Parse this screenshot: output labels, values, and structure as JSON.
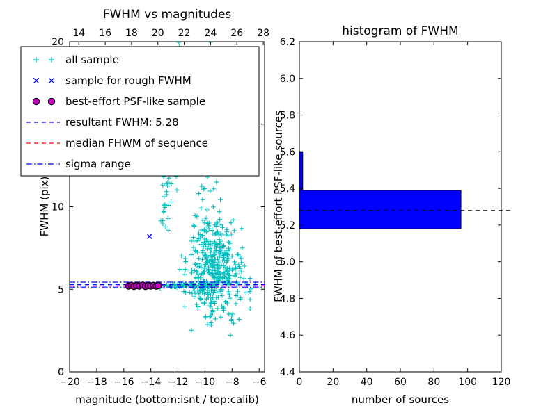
{
  "figure": {
    "background": "#ffffff"
  },
  "colors": {
    "all_sample": "#00bfbf",
    "rough_fwhm": "#0000ff",
    "psf_sample_fill": "#bf00bf",
    "psf_sample_edge": "#000000",
    "resultant_line": "#0000ff",
    "median_line": "#ff0000",
    "sigma_line": "#0000ff",
    "bar_fill": "#0000ff",
    "bar_edge": "#000000",
    "reference_dash": "#000000",
    "axes": "#000000"
  },
  "chart_data": [
    {
      "type": "scatter",
      "title": "FWHM vs magnitudes",
      "xlabel": "magnitude (bottom:isnt / top:calib)",
      "ylabel": "FWHM (pix)",
      "xlim": [
        -20,
        -5.6
      ],
      "ylim": [
        0,
        20
      ],
      "top_xlim": [
        13.3,
        28.1
      ],
      "x_ticks_bottom": [
        -20,
        -18,
        -16,
        -14,
        -12,
        -10,
        -8,
        -6
      ],
      "x_ticks_top": [
        14,
        16,
        18,
        20,
        22,
        24,
        26,
        28
      ],
      "y_ticks": [
        0,
        5,
        10,
        15,
        20
      ],
      "grid": false,
      "legend_position": "upper left",
      "series": [
        {
          "name": "all sample",
          "marker": "plus",
          "color": "#00bfbf",
          "seed": 42,
          "clusters": [
            {
              "n": 400,
              "x_mean": -9.3,
              "x_sd": 1.0,
              "x_min": -11.9,
              "x_max": -6.5,
              "y_mean": 6.3,
              "y_sd": 1.3,
              "y_min": 3.8,
              "y_max": 10.2
            },
            {
              "n": 70,
              "x_mean": -9.7,
              "x_sd": 0.6,
              "x_min": -11.2,
              "x_max": -8.2,
              "y_mean": 14.0,
              "y_sd": 3.5,
              "y_min": 8.0,
              "y_max": 20.0
            },
            {
              "n": 40,
              "x_mean": -11.9,
              "x_sd": 0.15,
              "x_min": -12.3,
              "x_max": -11.5,
              "y_mean": 15.0,
              "y_sd": 3.0,
              "y_min": 9.5,
              "y_max": 20.0
            },
            {
              "n": 35,
              "x_mean": -9.0,
              "x_sd": 1.3,
              "x_min": -11.5,
              "x_max": -6.5,
              "y_mean": 3.6,
              "y_sd": 0.6,
              "y_min": 2.2,
              "y_max": 4.6
            },
            {
              "n": 80,
              "x_mean": -11.6,
              "x_sd": 1.3,
              "x_min": -13.9,
              "x_max": -9.3,
              "y_mean": 5.22,
              "y_sd": 0.07,
              "y_min": 5.0,
              "y_max": 5.45
            },
            {
              "n": 25,
              "x_mean": -12.9,
              "x_sd": 0.25,
              "x_min": -13.5,
              "x_max": -12.3,
              "y_mean": 10.3,
              "y_sd": 1.4,
              "y_min": 7.8,
              "y_max": 13.0
            },
            {
              "n": 8,
              "x_mean": -9.8,
              "x_sd": 0.8,
              "x_min": -11.5,
              "x_max": -8.5,
              "y_mean": 18.5,
              "y_sd": 1.2,
              "y_min": 16.0,
              "y_max": 20.0
            },
            {
              "n": 6,
              "x_mean": -6.6,
              "x_sd": 0.3,
              "x_min": -7.2,
              "x_max": -6.1,
              "y_mean": 5.0,
              "y_sd": 0.4,
              "y_min": 4.3,
              "y_max": 5.6
            }
          ]
        },
        {
          "name": "sample for rough FWHM",
          "marker": "x",
          "color": "#0000ff",
          "points": [
            [
              -14.1,
              8.2
            ],
            [
              -15.6,
              5.2
            ],
            [
              -15.3,
              5.25
            ],
            [
              -15.0,
              5.18
            ],
            [
              -14.7,
              5.22
            ],
            [
              -14.4,
              5.2
            ],
            [
              -14.1,
              5.24
            ],
            [
              -13.8,
              5.19
            ],
            [
              -13.5,
              5.22
            ],
            [
              -13.3,
              5.2
            ]
          ]
        },
        {
          "name": "best-effort PSF-like sample",
          "marker": "circle",
          "color": "#bf00bf",
          "edge_color": "#000000",
          "points": [
            [
              -15.65,
              5.2
            ],
            [
              -15.45,
              5.24
            ],
            [
              -15.25,
              5.18
            ],
            [
              -15.05,
              5.22
            ],
            [
              -14.85,
              5.2
            ],
            [
              -14.6,
              5.25
            ],
            [
              -14.4,
              5.18
            ],
            [
              -14.2,
              5.22
            ],
            [
              -14.0,
              5.2
            ],
            [
              -13.8,
              5.23
            ],
            [
              -13.6,
              5.19
            ],
            [
              -13.45,
              5.22
            ]
          ]
        }
      ],
      "lines": [
        {
          "name": "resultant FWHM: 5.28",
          "y": 5.28,
          "style": "dashed",
          "color": "#0000ff"
        },
        {
          "name": "median FHWM of sequence",
          "y": 5.2,
          "style": "dashed",
          "color": "#ff0000"
        },
        {
          "name": "sigma range",
          "y_values": [
            5.13,
            5.43
          ],
          "style": "dashdot",
          "color": "#0000ff"
        }
      ],
      "legend_entries": [
        {
          "label": "all sample",
          "type": "marker",
          "marker": "plus",
          "color": "#00bfbf"
        },
        {
          "label": "sample for rough FWHM",
          "type": "marker",
          "marker": "x",
          "color": "#0000ff"
        },
        {
          "label": "best-effort PSF-like sample",
          "type": "marker",
          "marker": "circle",
          "color": "#bf00bf",
          "edge_color": "#000000"
        },
        {
          "label": "resultant FWHM: 5.28",
          "type": "line",
          "style": "dashed",
          "color": "#0000ff"
        },
        {
          "label": "median FHWM of sequence",
          "type": "line",
          "style": "dashed",
          "color": "#ff0000"
        },
        {
          "label": "sigma range",
          "type": "line",
          "style": "dashdot",
          "color": "#0000ff"
        }
      ]
    },
    {
      "type": "bar",
      "orientation": "horizontal",
      "title": "histogram of FWHM",
      "xlabel": "number of sources",
      "ylabel": "FWHM of best-effort PSF-like sources",
      "xlim": [
        0,
        120
      ],
      "ylim": [
        4.4,
        6.2
      ],
      "x_ticks": [
        0,
        20,
        40,
        60,
        80,
        100,
        120
      ],
      "y_ticks": [
        4.4,
        4.6,
        4.8,
        5.0,
        5.2,
        5.4,
        5.6,
        5.8,
        6.0,
        6.2
      ],
      "bars": [
        {
          "y_start": 5.18,
          "y_end": 5.39,
          "value": 96
        },
        {
          "y_start": 5.39,
          "y_end": 5.6,
          "value": 2
        }
      ],
      "bar_color": "#0000ff",
      "bar_edge_color": "#000000",
      "reference_line": {
        "y": 5.28,
        "style": "dashed",
        "color": "#000000",
        "extends_beyond_axes": true
      }
    }
  ]
}
